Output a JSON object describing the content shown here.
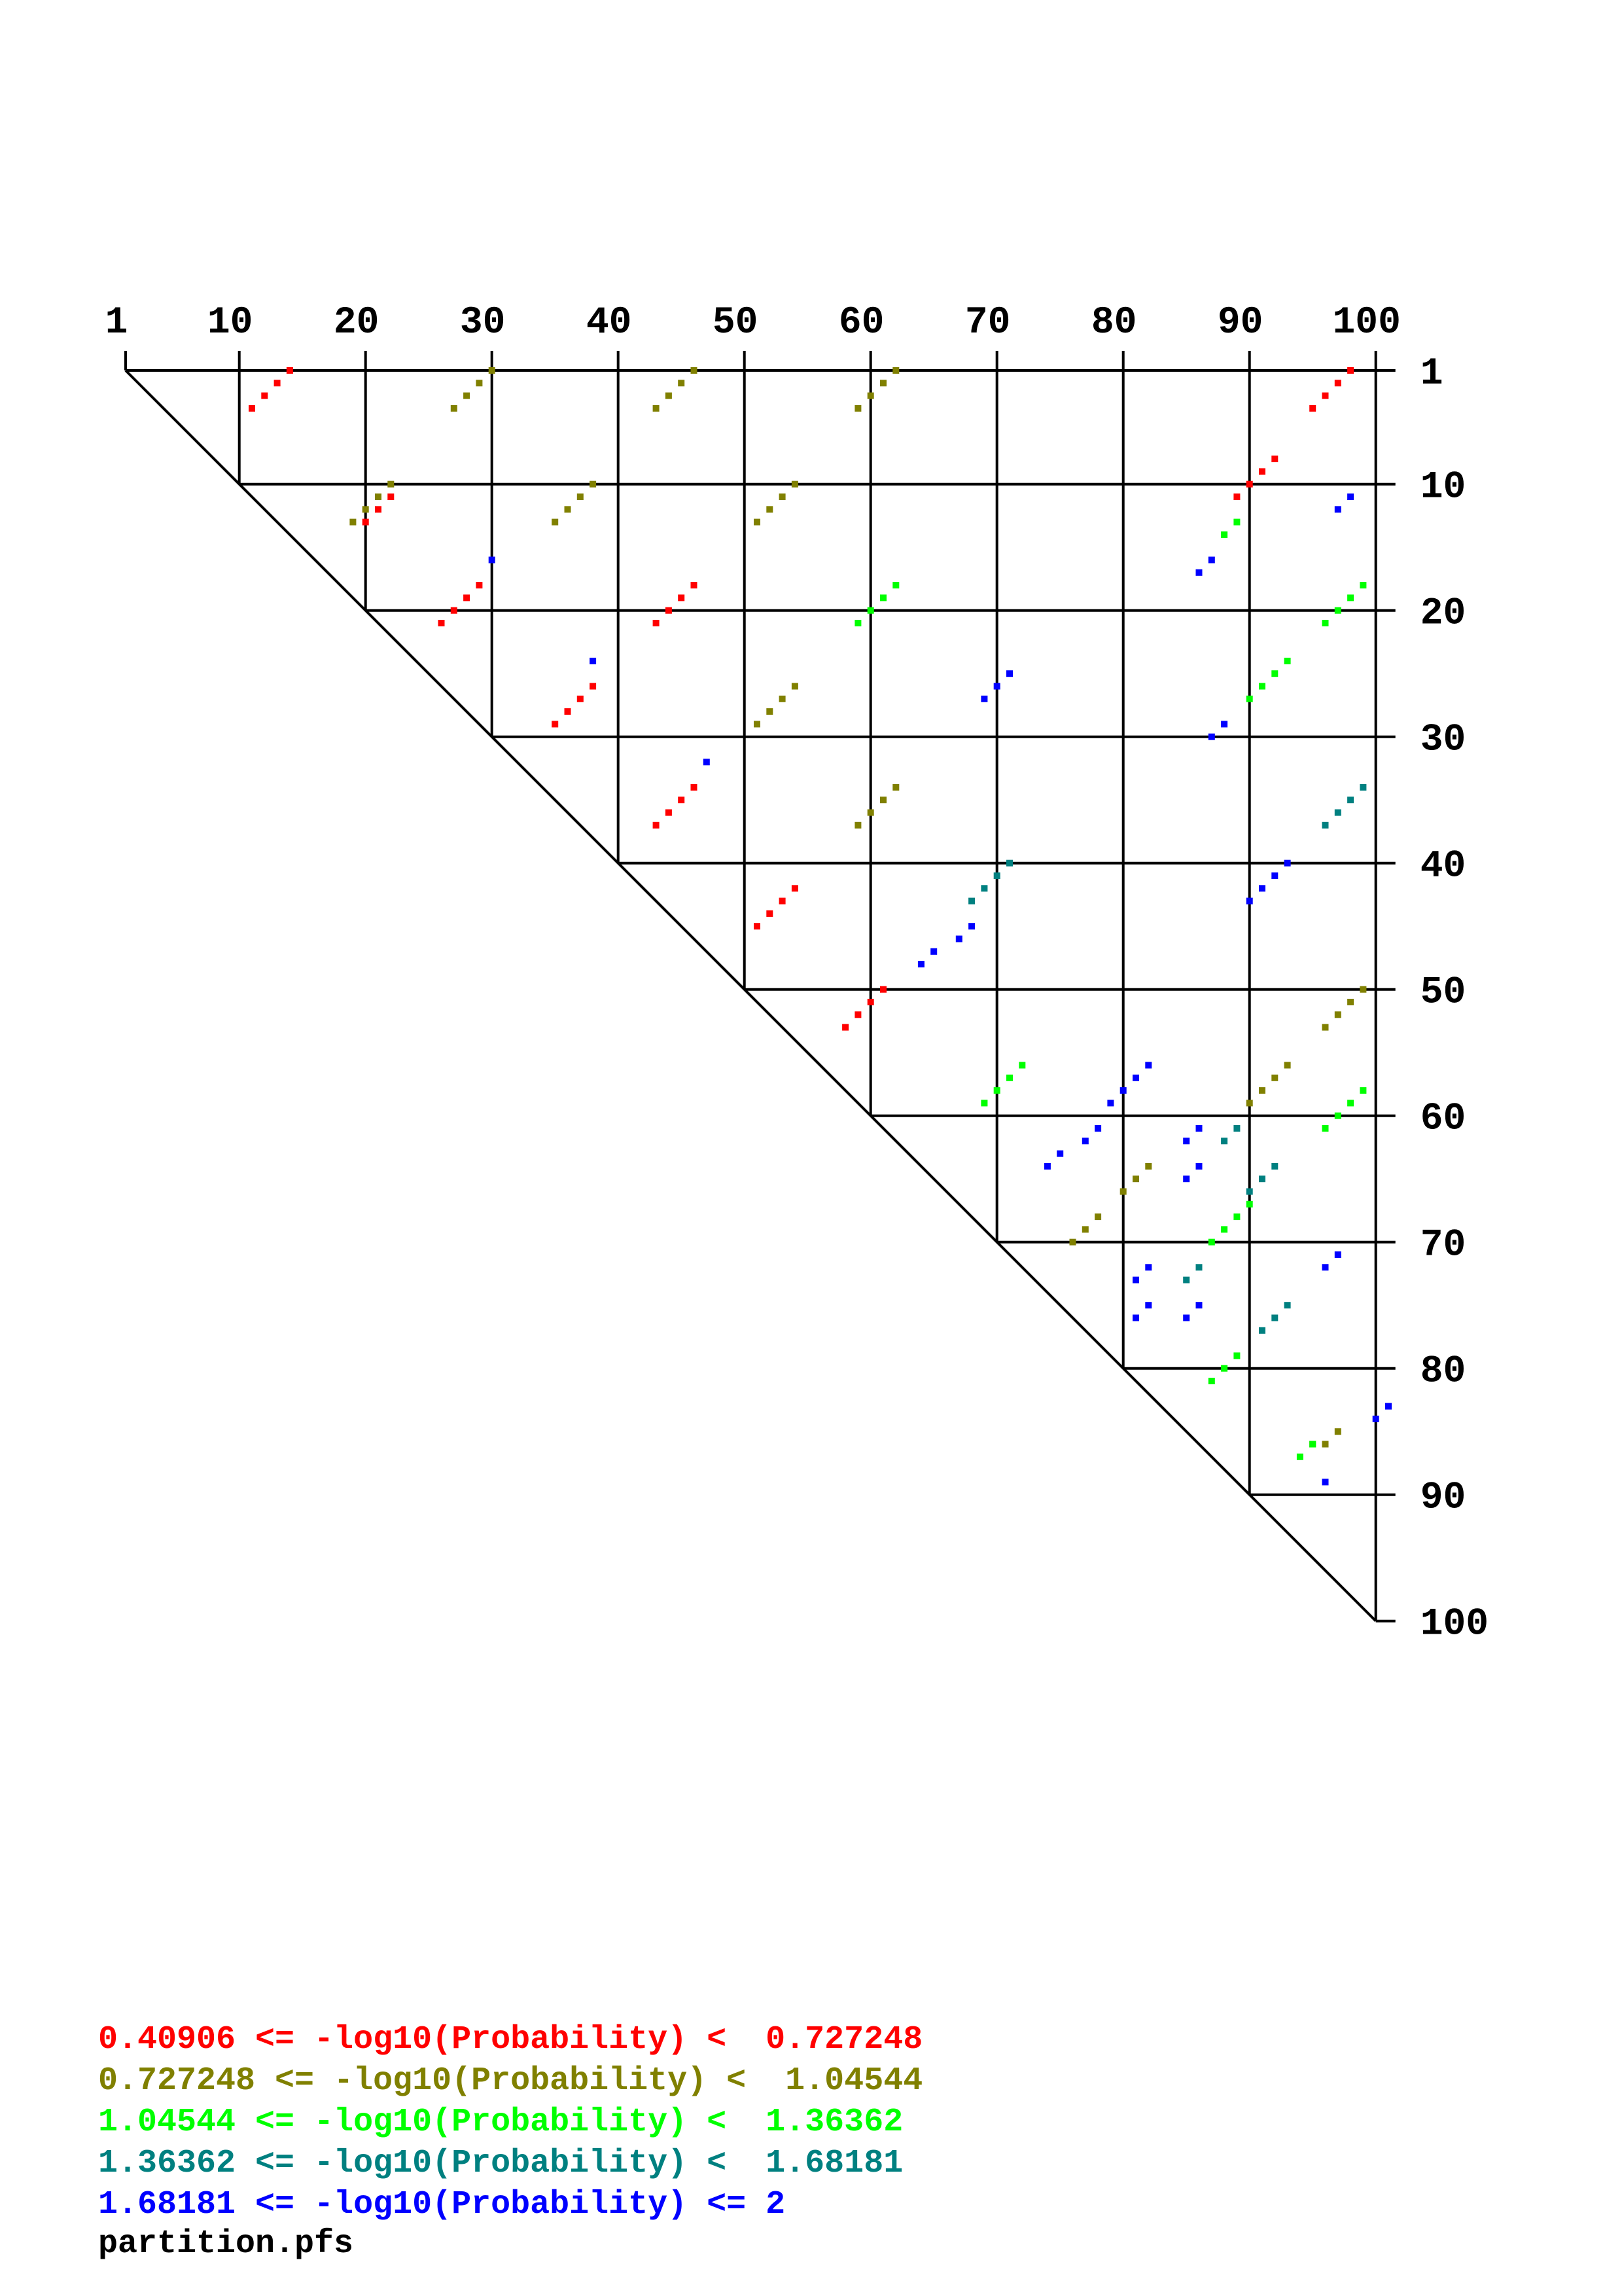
{
  "chart_data": {
    "type": "scatter",
    "description_kind": "triangular dot plot",
    "sequence_length": 100,
    "x_tick_labels": [
      "1",
      "10",
      "20",
      "30",
      "40",
      "50",
      "60",
      "70",
      "80",
      "90",
      "100"
    ],
    "y_tick_labels": [
      "1",
      "10",
      "20",
      "30",
      "40",
      "50",
      "60",
      "70",
      "80",
      "90",
      "100"
    ],
    "ticks": [
      1,
      10,
      20,
      30,
      40,
      50,
      60,
      70,
      80,
      90,
      100
    ],
    "grid": true,
    "legend_placement": "bottom-left",
    "legend": [
      {
        "label": "0.40906 <= -log10(Probability) <  0.727248",
        "color": "#ff0000"
      },
      {
        "label": "0.727248 <= -log10(Probability) <  1.04544",
        "color": "#808000"
      },
      {
        "label": "1.04544 <= -log10(Probability) <  1.36362",
        "color": "#00ff00"
      },
      {
        "label": "1.36362 <= -log10(Probability) <  1.68181",
        "color": "#008080"
      },
      {
        "label": "1.68181 <= -log10(Probability) <= 2",
        "color": "#0000ff"
      }
    ],
    "series": [
      {
        "color": "#ff0000",
        "points": [
          [
            14,
            1
          ],
          [
            13,
            2
          ],
          [
            12,
            3
          ],
          [
            11,
            4
          ],
          [
            98,
            1
          ],
          [
            97,
            2
          ],
          [
            96,
            3
          ],
          [
            95,
            4
          ],
          [
            92,
            8
          ],
          [
            91,
            9
          ],
          [
            90,
            10
          ],
          [
            89,
            11
          ],
          [
            22,
            11
          ],
          [
            21,
            12
          ],
          [
            20,
            13
          ],
          [
            29,
            18
          ],
          [
            28,
            19
          ],
          [
            27,
            20
          ],
          [
            26,
            21
          ],
          [
            46,
            18
          ],
          [
            45,
            19
          ],
          [
            44,
            20
          ],
          [
            43,
            21
          ],
          [
            38,
            26
          ],
          [
            37,
            27
          ],
          [
            36,
            28
          ],
          [
            35,
            29
          ],
          [
            46,
            34
          ],
          [
            45,
            35
          ],
          [
            44,
            36
          ],
          [
            43,
            37
          ],
          [
            54,
            42
          ],
          [
            53,
            43
          ],
          [
            52,
            44
          ],
          [
            51,
            45
          ],
          [
            61,
            50
          ],
          [
            60,
            51
          ],
          [
            59,
            52
          ],
          [
            58,
            53
          ]
        ]
      },
      {
        "color": "#808000",
        "points": [
          [
            30,
            1
          ],
          [
            29,
            2
          ],
          [
            28,
            3
          ],
          [
            27,
            4
          ],
          [
            46,
            1
          ],
          [
            45,
            2
          ],
          [
            44,
            3
          ],
          [
            43,
            4
          ],
          [
            62,
            1
          ],
          [
            61,
            2
          ],
          [
            60,
            3
          ],
          [
            59,
            4
          ],
          [
            22,
            10
          ],
          [
            21,
            11
          ],
          [
            20,
            12
          ],
          [
            19,
            13
          ],
          [
            38,
            10
          ],
          [
            37,
            11
          ],
          [
            36,
            12
          ],
          [
            35,
            13
          ],
          [
            54,
            10
          ],
          [
            53,
            11
          ],
          [
            52,
            12
          ],
          [
            51,
            13
          ],
          [
            54,
            26
          ],
          [
            53,
            27
          ],
          [
            52,
            28
          ],
          [
            51,
            29
          ],
          [
            62,
            34
          ],
          [
            61,
            35
          ],
          [
            60,
            36
          ],
          [
            59,
            37
          ],
          [
            99,
            50
          ],
          [
            98,
            51
          ],
          [
            97,
            52
          ],
          [
            96,
            53
          ],
          [
            93,
            56
          ],
          [
            92,
            57
          ],
          [
            91,
            58
          ],
          [
            90,
            59
          ],
          [
            82,
            64
          ],
          [
            81,
            65
          ],
          [
            80,
            66
          ],
          [
            78,
            68
          ],
          [
            77,
            69
          ],
          [
            76,
            70
          ],
          [
            97,
            85
          ],
          [
            96,
            86
          ],
          [
            95,
            86
          ]
        ]
      },
      {
        "color": "#00ff00",
        "points": [
          [
            89,
            13
          ],
          [
            88,
            14
          ],
          [
            62,
            18
          ],
          [
            61,
            19
          ],
          [
            60,
            20
          ],
          [
            59,
            21
          ],
          [
            99,
            18
          ],
          [
            98,
            19
          ],
          [
            97,
            20
          ],
          [
            96,
            21
          ],
          [
            93,
            24
          ],
          [
            92,
            25
          ],
          [
            91,
            26
          ],
          [
            90,
            27
          ],
          [
            72,
            56
          ],
          [
            71,
            57
          ],
          [
            70,
            58
          ],
          [
            69,
            59
          ],
          [
            99,
            58
          ],
          [
            98,
            59
          ],
          [
            97,
            60
          ],
          [
            96,
            61
          ],
          [
            90,
            67
          ],
          [
            89,
            68
          ],
          [
            88,
            69
          ],
          [
            87,
            70
          ],
          [
            89,
            79
          ],
          [
            88,
            80
          ],
          [
            87,
            81
          ],
          [
            94,
            87
          ],
          [
            95,
            86
          ]
        ]
      },
      {
        "color": "#008080",
        "points": [
          [
            99,
            34
          ],
          [
            98,
            35
          ],
          [
            97,
            36
          ],
          [
            96,
            37
          ],
          [
            71,
            40
          ],
          [
            70,
            41
          ],
          [
            69,
            42
          ],
          [
            68,
            43
          ],
          [
            89,
            61
          ],
          [
            88,
            62
          ],
          [
            92,
            64
          ],
          [
            91,
            65
          ],
          [
            90,
            66
          ],
          [
            86,
            72
          ],
          [
            85,
            73
          ],
          [
            93,
            75
          ],
          [
            92,
            76
          ],
          [
            91,
            77
          ]
        ]
      },
      {
        "color": "#0000ff",
        "points": [
          [
            98,
            11
          ],
          [
            97,
            12
          ],
          [
            30,
            16
          ],
          [
            87,
            16
          ],
          [
            86,
            17
          ],
          [
            38,
            24
          ],
          [
            71,
            25
          ],
          [
            70,
            26
          ],
          [
            69,
            27
          ],
          [
            88,
            29
          ],
          [
            87,
            30
          ],
          [
            47,
            32
          ],
          [
            93,
            40
          ],
          [
            92,
            41
          ],
          [
            91,
            42
          ],
          [
            90,
            43
          ],
          [
            68,
            45
          ],
          [
            67,
            46
          ],
          [
            65,
            47
          ],
          [
            64,
            48
          ],
          [
            82,
            56
          ],
          [
            81,
            57
          ],
          [
            80,
            58
          ],
          [
            79,
            59
          ],
          [
            78,
            61
          ],
          [
            77,
            62
          ],
          [
            75,
            63
          ],
          [
            74,
            64
          ],
          [
            86,
            61
          ],
          [
            85,
            62
          ],
          [
            86,
            64
          ],
          [
            85,
            65
          ],
          [
            97,
            71
          ],
          [
            96,
            72
          ],
          [
            82,
            72
          ],
          [
            81,
            73
          ],
          [
            82,
            75
          ],
          [
            81,
            76
          ],
          [
            86,
            75
          ],
          [
            85,
            76
          ],
          [
            101,
            83
          ],
          [
            100,
            84
          ],
          [
            96,
            89
          ]
        ]
      }
    ]
  },
  "filename": "partition.pfs"
}
